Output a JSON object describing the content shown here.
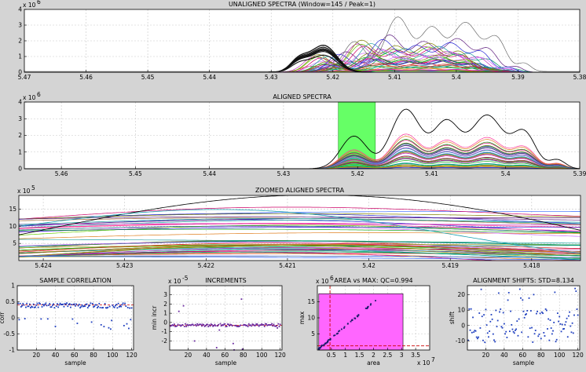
{
  "window_title": "",
  "colors": {
    "background": "#d4d4d4",
    "axes_bg": "#ffffff",
    "window_highlight": "#66ff66",
    "area_highlight": "#ff66ff",
    "dashed_red": "#cc0000",
    "point_blue": "#1f3fbf"
  },
  "chart_data": [
    {
      "id": "unaligned",
      "type": "line",
      "title": "UNALIGNED SPECTRA (Window=145 / Peak=1)",
      "xlim": [
        5.47,
        5.38
      ],
      "x_reversed": true,
      "xticks": [
        "5.47",
        "5.46",
        "5.45",
        "5.44",
        "5.43",
        "5.42",
        "5.41",
        "5.4",
        "5.39",
        "5.38"
      ],
      "xtick_values": [
        5.47,
        5.46,
        5.45,
        5.44,
        5.43,
        5.42,
        5.41,
        5.4,
        5.39,
        5.38
      ],
      "ylim": [
        0,
        4
      ],
      "yticks": [
        "0",
        "1",
        "2",
        "3",
        "4"
      ],
      "y_multiplier": "x 10",
      "y_exponent": "6",
      "grid": true
    },
    {
      "id": "aligned",
      "type": "line",
      "title": "ALIGNED SPECTRA",
      "xlim": [
        5.465,
        5.39
      ],
      "x_reversed": true,
      "xticks": [
        "5.46",
        "5.45",
        "5.44",
        "5.43",
        "5.42",
        "5.41",
        "5.4",
        "5.39"
      ],
      "xtick_values": [
        5.46,
        5.45,
        5.44,
        5.43,
        5.42,
        5.41,
        5.4,
        5.39
      ],
      "ylim": [
        0,
        4
      ],
      "yticks": [
        "0",
        "1",
        "2",
        "3",
        "4"
      ],
      "y_multiplier": "x 10",
      "y_exponent": "6",
      "highlight_window": [
        5.4226,
        5.4176
      ],
      "grid": true
    },
    {
      "id": "zoomed",
      "type": "line",
      "title": "ZOOMED ALIGNED SPECTRA",
      "xlim": [
        5.4243,
        5.4174
      ],
      "x_reversed": true,
      "xticks": [
        "5.424",
        "5.423",
        "5.422",
        "5.421",
        "5.42",
        "5.419",
        "5.418"
      ],
      "xtick_values": [
        5.424,
        5.423,
        5.422,
        5.421,
        5.42,
        5.419,
        5.418
      ],
      "ylim": [
        0,
        19
      ],
      "yticks": [
        "5",
        "10",
        "15"
      ],
      "ytick_values": [
        5,
        10,
        15
      ],
      "y_multiplier": "x 10",
      "y_exponent": "5",
      "grid": true
    },
    {
      "id": "correlation",
      "type": "scatter",
      "title": "SAMPLE CORRELATION",
      "xlabel": "sample",
      "ylabel": "corr",
      "xlim": [
        0,
        122
      ],
      "xticks": [
        "20",
        "40",
        "60",
        "80",
        "100",
        "120"
      ],
      "xtick_values": [
        20,
        40,
        60,
        80,
        100,
        120
      ],
      "ylim": [
        -1,
        1
      ],
      "yticks": [
        "-1",
        "-0.5",
        "0",
        "0.5",
        "1"
      ],
      "ytick_values": [
        -1,
        -0.5,
        0,
        0.5,
        1
      ],
      "mean_line": 0.4,
      "grid": true
    },
    {
      "id": "increments",
      "type": "scatter",
      "title": "INCREMENTS",
      "xlabel": "sample",
      "ylabel": "min incr",
      "xlim": [
        0,
        122
      ],
      "xticks": [
        "20",
        "40",
        "60",
        "80",
        "100",
        "120"
      ],
      "xtick_values": [
        20,
        40,
        60,
        80,
        100,
        120
      ],
      "ylim": [
        -3,
        4
      ],
      "yticks": [
        "-2",
        "-1",
        "0",
        "1",
        "2",
        "3"
      ],
      "ytick_values": [
        -2,
        -1,
        0,
        1,
        2,
        3
      ],
      "y_multiplier": "x 10",
      "y_exponent": "-5",
      "mean_line": -0.3,
      "grid": true
    },
    {
      "id": "area_vs_max",
      "type": "scatter",
      "title": "AREA vs MAX: QC=0.994",
      "xlabel": "area",
      "ylabel": "max",
      "xlim": [
        0,
        4
      ],
      "xticks": [
        "0.5",
        "1",
        "1.5",
        "2",
        "2.5",
        "3",
        "3.5"
      ],
      "xtick_values": [
        0.5,
        1,
        1.5,
        2,
        2.5,
        3,
        3.5
      ],
      "ylim": [
        0,
        20
      ],
      "yticks": [
        "5",
        "10",
        "15"
      ],
      "ytick_values": [
        5,
        10,
        15
      ],
      "y_multiplier": "x 10",
      "y_exponent": "6",
      "x_multiplier": "x 10",
      "x_exponent": "7",
      "highlight_box": {
        "x": [
          0.05,
          3.05
        ],
        "y": [
          0,
          17.5
        ]
      },
      "dashed_vline": 0.45,
      "dashed_hline": 1.3,
      "grid": true
    },
    {
      "id": "shifts",
      "type": "scatter",
      "title": "ALIGNMENT SHIFTS: STD=8.134",
      "xlabel": "sample",
      "ylabel": "shift",
      "xlim": [
        0,
        122
      ],
      "xticks": [
        "20",
        "40",
        "60",
        "80",
        "100",
        "120"
      ],
      "xtick_values": [
        20,
        40,
        60,
        80,
        100,
        120
      ],
      "ylim": [
        -16,
        26
      ],
      "yticks": [
        "-10",
        "0",
        "10",
        "20"
      ],
      "ytick_values": [
        -10,
        0,
        10,
        20
      ],
      "grid": true
    }
  ]
}
